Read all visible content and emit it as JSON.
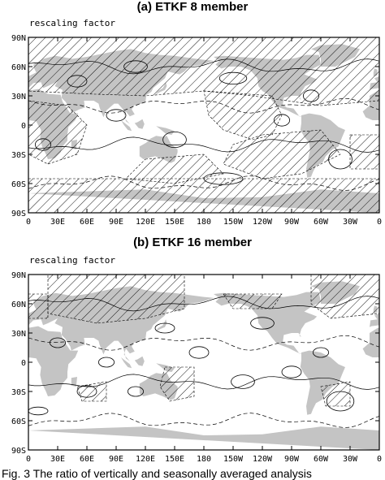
{
  "panels": [
    {
      "title": "(a) ETKF 8 member",
      "map_label": "rescaling factor",
      "lat_ticks": [
        "90N",
        "60N",
        "30N",
        "0",
        "30S",
        "60S",
        "90S"
      ],
      "lon_ticks": [
        "0",
        "30E",
        "60E",
        "90E",
        "120E",
        "150E",
        "180",
        "150W",
        "120W",
        "90W",
        "60W",
        "30W",
        "0"
      ]
    },
    {
      "title": "(b) ETKF 16 member",
      "map_label": "rescaling factor",
      "lat_ticks": [
        "90N",
        "60N",
        "30N",
        "0",
        "30S",
        "60S",
        "90S"
      ],
      "lon_ticks": [
        "0",
        "30E",
        "60E",
        "90E",
        "120E",
        "150E",
        "180",
        "150W",
        "120W",
        "90W",
        "60W",
        "30W",
        "0"
      ]
    }
  ],
  "colors": {
    "land": "#c4c4c4",
    "frame": "#000000",
    "hatch": "#000000"
  },
  "caption": "Fig. 3 The ratio of vertically and seasonally averaged analysis"
}
